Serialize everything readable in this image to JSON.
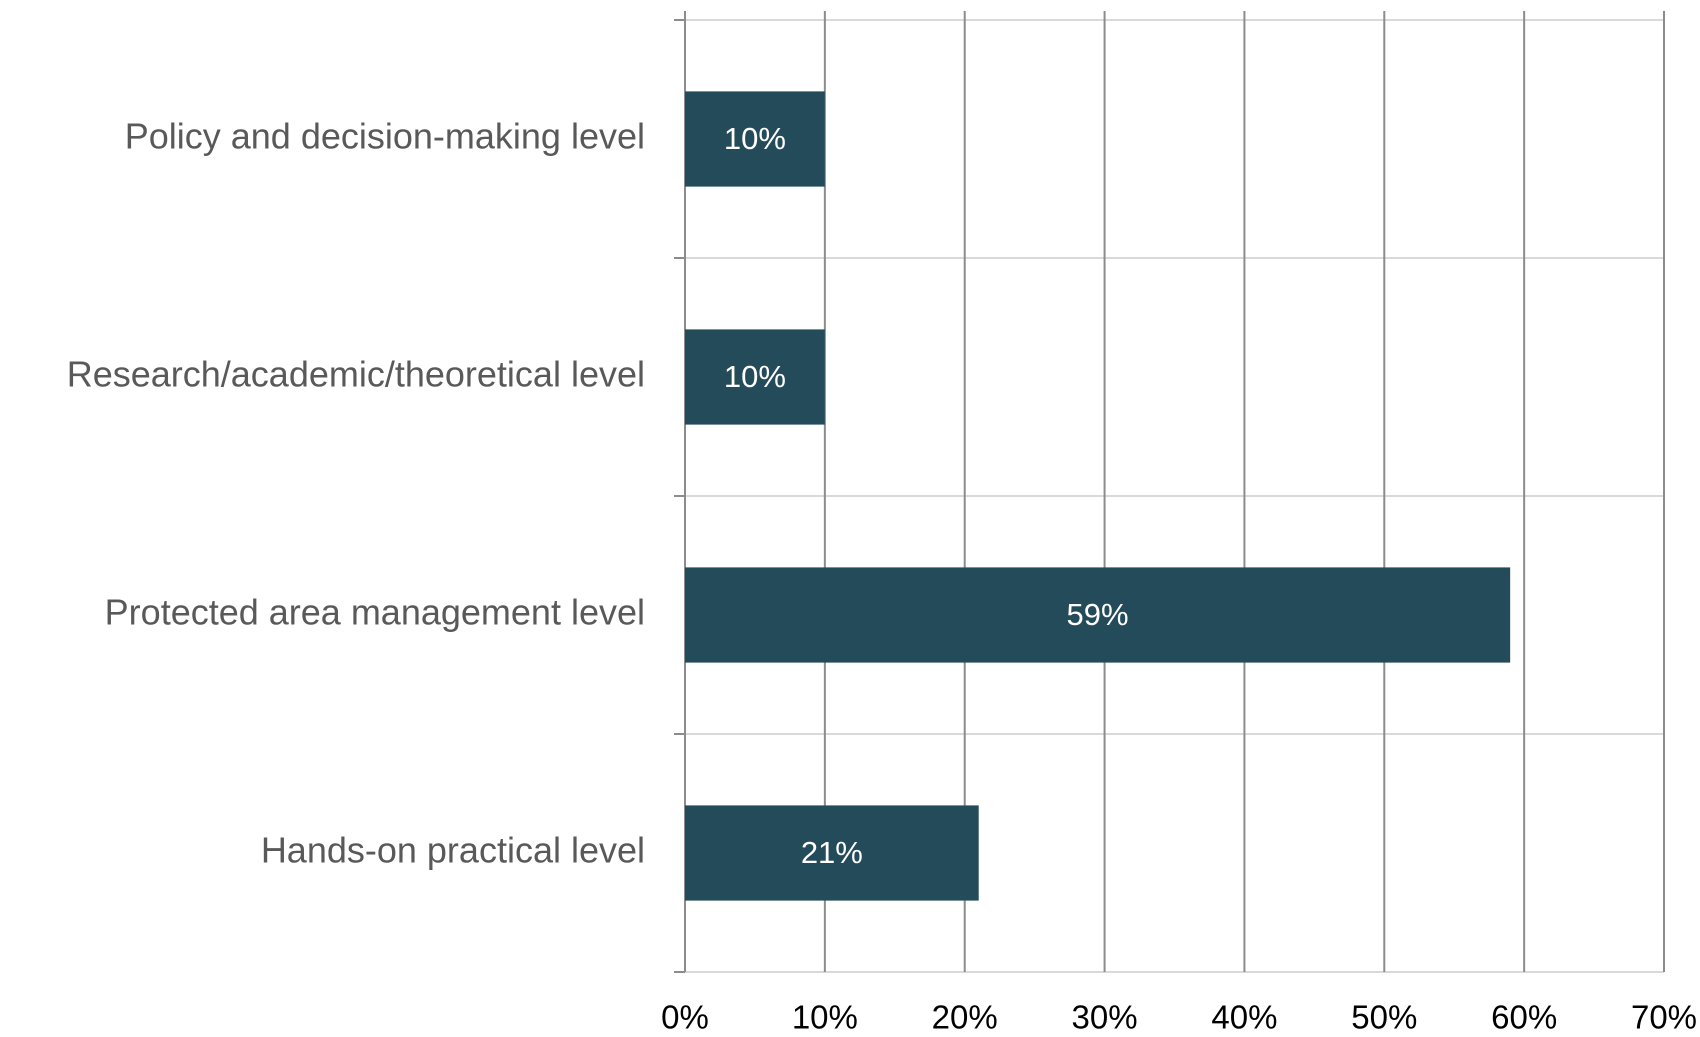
{
  "chart_data": {
    "type": "bar",
    "orientation": "horizontal",
    "categories": [
      "Policy and decision-making level",
      "Research/academic/theoretical level",
      "Protected area management level",
      "Hands-on practical level"
    ],
    "values": [
      10,
      10,
      59,
      21
    ],
    "value_labels": [
      "10%",
      "10%",
      "59%",
      "21%"
    ],
    "color": "#234b5a",
    "xlim": [
      0,
      70
    ],
    "xticks": [
      {
        "value": 0,
        "label": "0%"
      },
      {
        "value": 10,
        "label": "10%"
      },
      {
        "value": 20,
        "label": "20%"
      },
      {
        "value": 30,
        "label": "30%"
      },
      {
        "value": 40,
        "label": "40%"
      },
      {
        "value": 50,
        "label": "50%"
      },
      {
        "value": 60,
        "label": "60%"
      },
      {
        "value": 70,
        "label": "70%"
      }
    ],
    "grid": true
  }
}
